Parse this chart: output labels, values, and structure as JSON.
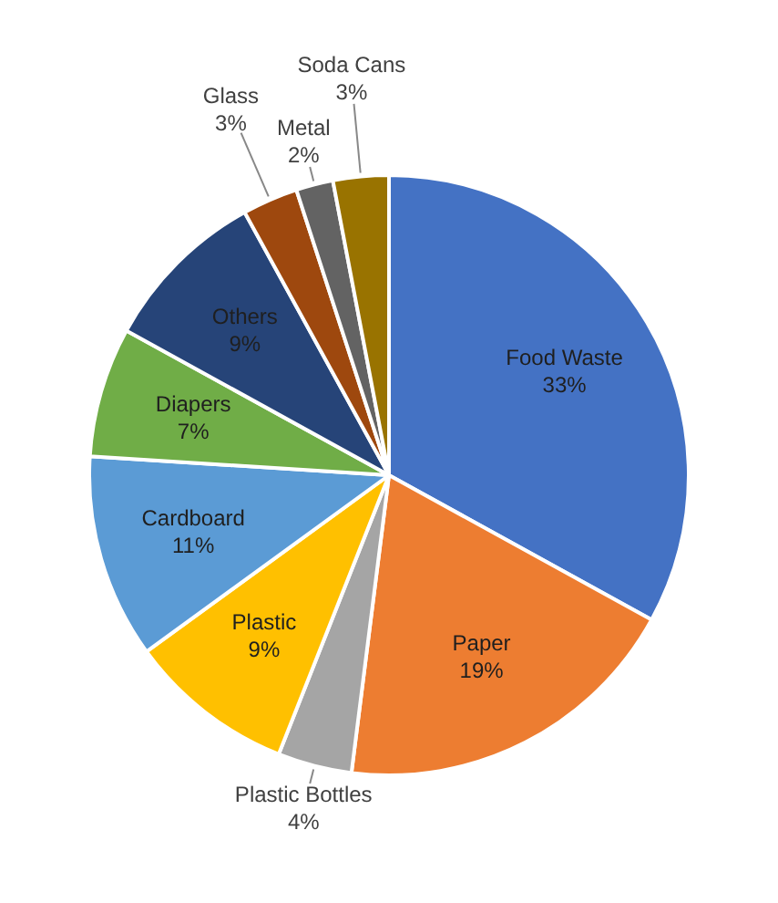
{
  "chart_data": {
    "type": "pie",
    "categories": [
      "Food Waste",
      "Paper",
      "Plastic Bottles",
      "Plastic",
      "Cardboard",
      "Diapers",
      "Others",
      "Glass",
      "Metal",
      "Soda Cans"
    ],
    "values": [
      33,
      19,
      4,
      9,
      11,
      7,
      9,
      3,
      2,
      3
    ],
    "value_labels": [
      "33%",
      "19%",
      "4%",
      "9%",
      "11%",
      "7%",
      "9%",
      "3%",
      "2%",
      "3%"
    ],
    "colors": [
      "#4472c4",
      "#ed7d31",
      "#a5a5a5",
      "#ffc000",
      "#5b9bd5",
      "#70ad47",
      "#264478",
      "#9e480e",
      "#636363",
      "#997300"
    ],
    "legend": false
  }
}
